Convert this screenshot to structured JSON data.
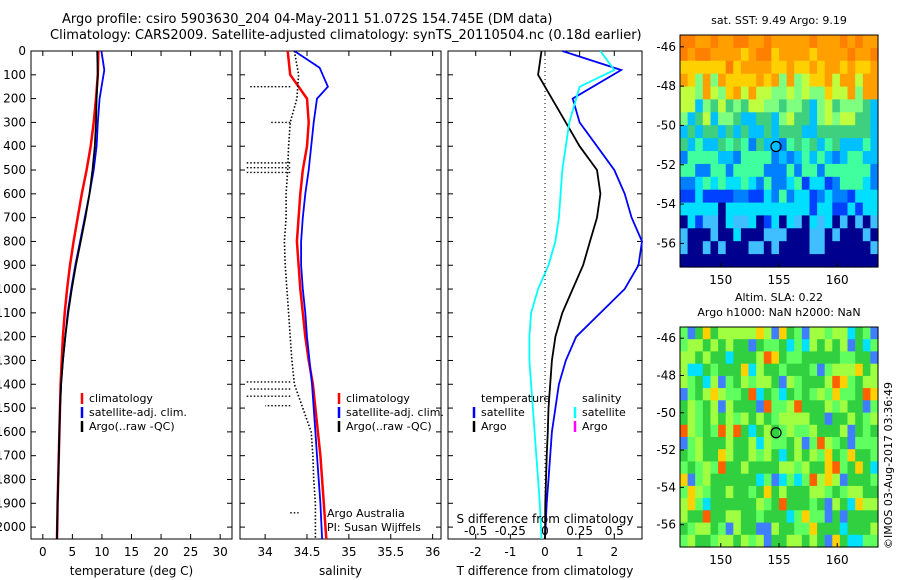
{
  "header": {
    "title_line1": "Argo profile: csiro 5903630_204 04-May-2011 51.072S 154.745E (DM data)",
    "title_line2": "Climatology: CARS2009. Satellite-adjusted climatology: synTS_20110504.nc (0.18d earlier)"
  },
  "colors": {
    "climatology": "#ff0000",
    "satellite": "#0000ff",
    "argo": "#000000",
    "satellite_salinity": "#00ffff",
    "argo_salinity": "#ff00ff"
  },
  "chart_data": [
    {
      "type": "line",
      "panel": "temperature",
      "xlabel": "temperature (deg C)",
      "ylabel": "",
      "xlim": [
        -2,
        32
      ],
      "ylim": [
        2050,
        0
      ],
      "xticks": [
        0,
        5,
        10,
        15,
        20,
        25,
        30
      ],
      "yticks": [
        0,
        100,
        200,
        300,
        400,
        500,
        600,
        700,
        800,
        900,
        1000,
        1100,
        1200,
        1300,
        1400,
        1500,
        1600,
        1700,
        1800,
        1900,
        2000
      ],
      "legend": [
        "climatology",
        "satellite-adj. clim.",
        "Argo(..raw -QC)"
      ],
      "series": [
        {
          "name": "climatology",
          "color": "#ff0000",
          "points": [
            [
              9.4,
              0
            ],
            [
              9.3,
              100
            ],
            [
              9.0,
              200
            ],
            [
              8.6,
              300
            ],
            [
              8.1,
              400
            ],
            [
              7.4,
              500
            ],
            [
              6.6,
              600
            ],
            [
              5.9,
              700
            ],
            [
              5.2,
              800
            ],
            [
              4.6,
              900
            ],
            [
              4.1,
              1000
            ],
            [
              3.7,
              1100
            ],
            [
              3.4,
              1200
            ],
            [
              3.2,
              1300
            ],
            [
              3.0,
              1400
            ],
            [
              2.9,
              1500
            ],
            [
              2.8,
              1600
            ],
            [
              2.7,
              1700
            ],
            [
              2.6,
              1800
            ],
            [
              2.5,
              1900
            ],
            [
              2.4,
              2050
            ]
          ]
        },
        {
          "name": "satellite-adj. clim.",
          "color": "#0000ff",
          "points": [
            [
              9.9,
              0
            ],
            [
              10.4,
              80
            ],
            [
              9.6,
              200
            ],
            [
              9.3,
              300
            ],
            [
              9.1,
              400
            ],
            [
              8.6,
              500
            ],
            [
              7.9,
              600
            ],
            [
              7.1,
              700
            ],
            [
              6.3,
              800
            ],
            [
              5.5,
              900
            ],
            [
              4.8,
              1000
            ],
            [
              4.2,
              1100
            ],
            [
              3.8,
              1200
            ],
            [
              3.4,
              1300
            ],
            [
              3.1,
              1400
            ],
            [
              2.9,
              1500
            ],
            [
              2.8,
              1600
            ],
            [
              2.7,
              1700
            ],
            [
              2.6,
              1800
            ],
            [
              2.5,
              1900
            ],
            [
              2.4,
              2050
            ]
          ]
        },
        {
          "name": "Argo(..raw -QC)",
          "color": "#000000",
          "points": [
            [
              9.2,
              0
            ],
            [
              9.3,
              100
            ],
            [
              9.1,
              200
            ],
            [
              9.0,
              300
            ],
            [
              8.8,
              400
            ],
            [
              8.4,
              500
            ],
            [
              7.9,
              600
            ],
            [
              7.2,
              700
            ],
            [
              6.4,
              800
            ],
            [
              5.6,
              900
            ],
            [
              4.9,
              1000
            ],
            [
              4.3,
              1100
            ],
            [
              3.8,
              1200
            ],
            [
              3.4,
              1300
            ],
            [
              3.1,
              1400
            ],
            [
              2.9,
              1500
            ],
            [
              2.8,
              1600
            ],
            [
              2.7,
              1700
            ],
            [
              2.6,
              1800
            ],
            [
              2.5,
              1900
            ],
            [
              2.4,
              2050
            ]
          ]
        }
      ]
    },
    {
      "type": "line",
      "panel": "salinity",
      "xlabel": "salinity",
      "ylabel": "",
      "xlim": [
        33.7,
        36.1
      ],
      "ylim": [
        2050,
        0
      ],
      "xticks": [
        34,
        34.5,
        35,
        35.5,
        36
      ],
      "legend": [
        "climatology",
        "satellite-adj. clim.",
        "Argo(..raw -QC)"
      ],
      "annotation": [
        "Argo Australia",
        "PI: Susan Wijffels"
      ],
      "series": [
        {
          "name": "climatology",
          "color": "#ff0000",
          "points": [
            [
              34.27,
              0
            ],
            [
              34.3,
              100
            ],
            [
              34.5,
              200
            ],
            [
              34.52,
              300
            ],
            [
              34.5,
              400
            ],
            [
              34.45,
              500
            ],
            [
              34.42,
              600
            ],
            [
              34.4,
              700
            ],
            [
              34.38,
              800
            ],
            [
              34.4,
              900
            ],
            [
              34.42,
              1000
            ],
            [
              34.45,
              1100
            ],
            [
              34.48,
              1200
            ],
            [
              34.52,
              1300
            ],
            [
              34.57,
              1400
            ],
            [
              34.6,
              1500
            ],
            [
              34.63,
              1600
            ],
            [
              34.66,
              1700
            ],
            [
              34.68,
              1800
            ],
            [
              34.7,
              1900
            ],
            [
              34.73,
              2050
            ]
          ]
        },
        {
          "name": "satellite-adj. clim.",
          "color": "#0000ff",
          "points": [
            [
              34.35,
              0
            ],
            [
              34.65,
              70
            ],
            [
              34.75,
              150
            ],
            [
              34.62,
              200
            ],
            [
              34.58,
              300
            ],
            [
              34.55,
              400
            ],
            [
              34.52,
              500
            ],
            [
              34.48,
              600
            ],
            [
              34.45,
              700
            ],
            [
              34.43,
              800
            ],
            [
              34.43,
              900
            ],
            [
              34.45,
              1000
            ],
            [
              34.48,
              1100
            ],
            [
              34.5,
              1200
            ],
            [
              34.53,
              1300
            ],
            [
              34.56,
              1400
            ],
            [
              34.58,
              1500
            ],
            [
              34.6,
              1600
            ],
            [
              34.62,
              1700
            ],
            [
              34.64,
              1800
            ],
            [
              34.66,
              1900
            ],
            [
              34.68,
              2050
            ]
          ]
        },
        {
          "name": "Argo(..raw -QC)",
          "color": "#000000",
          "dashed": true,
          "points": [
            [
              34.35,
              0
            ],
            [
              34.4,
              100
            ],
            [
              34.38,
              200
            ],
            [
              34.3,
              300
            ],
            [
              34.28,
              400
            ],
            [
              34.27,
              500
            ],
            [
              34.25,
              600
            ],
            [
              34.25,
              700
            ],
            [
              34.23,
              800
            ],
            [
              34.24,
              900
            ],
            [
              34.26,
              1000
            ],
            [
              34.28,
              1100
            ],
            [
              34.3,
              1200
            ],
            [
              34.32,
              1300
            ],
            [
              34.35,
              1400
            ],
            [
              34.45,
              1500
            ],
            [
              34.55,
              1600
            ],
            [
              34.57,
              1700
            ],
            [
              34.58,
              1800
            ],
            [
              34.6,
              1900
            ],
            [
              34.6,
              2050
            ]
          ]
        }
      ]
    },
    {
      "type": "line",
      "panel": "difference",
      "xlabel": "T difference from climatology",
      "xlabel_top": "S difference from climatology",
      "xlim": [
        -2.8,
        2.8
      ],
      "ylim": [
        2050,
        0
      ],
      "xticks": [
        -2,
        -1,
        0,
        1,
        2
      ],
      "xticks_s_labels": [
        "-0.5",
        "-0.25",
        "0",
        "0.25",
        "0.5"
      ],
      "legend": {
        "temperature": "temperature",
        "salinity": "salinity",
        "satellite": "satellite",
        "argo": "Argo"
      },
      "series": [
        {
          "name": "temperature satellite",
          "color": "#0000ff",
          "points": [
            [
              0.5,
              0
            ],
            [
              2.2,
              80
            ],
            [
              0.8,
              200
            ],
            [
              1.0,
              300
            ],
            [
              1.5,
              400
            ],
            [
              2.0,
              500
            ],
            [
              2.3,
              600
            ],
            [
              2.5,
              700
            ],
            [
              2.8,
              800
            ],
            [
              2.7,
              900
            ],
            [
              2.3,
              1000
            ],
            [
              1.6,
              1100
            ],
            [
              0.9,
              1200
            ],
            [
              0.6,
              1300
            ],
            [
              0.4,
              1400
            ],
            [
              0.3,
              1500
            ],
            [
              0.2,
              1600
            ],
            [
              0.15,
              1700
            ],
            [
              0.1,
              1800
            ],
            [
              0.05,
              1900
            ],
            [
              0.0,
              2050
            ]
          ]
        },
        {
          "name": "temperature Argo",
          "color": "#000000",
          "points": [
            [
              -0.1,
              0
            ],
            [
              -0.2,
              100
            ],
            [
              0.2,
              200
            ],
            [
              0.6,
              300
            ],
            [
              1.0,
              400
            ],
            [
              1.5,
              500
            ],
            [
              1.6,
              600
            ],
            [
              1.5,
              700
            ],
            [
              1.3,
              800
            ],
            [
              1.1,
              900
            ],
            [
              0.8,
              1000
            ],
            [
              0.5,
              1100
            ],
            [
              0.3,
              1200
            ],
            [
              0.2,
              1300
            ],
            [
              0.15,
              1400
            ],
            [
              0.1,
              1500
            ],
            [
              0.08,
              1600
            ],
            [
              0.05,
              1700
            ],
            [
              0.03,
              1800
            ],
            [
              0.01,
              1900
            ],
            [
              0.0,
              2050
            ]
          ]
        },
        {
          "name": "salinity satellite",
          "color": "#00ffff",
          "points": [
            [
              1.6,
              0
            ],
            [
              2.0,
              80
            ],
            [
              1.0,
              150
            ],
            [
              0.7,
              300
            ],
            [
              0.6,
              400
            ],
            [
              0.5,
              500
            ],
            [
              0.45,
              600
            ],
            [
              0.4,
              700
            ],
            [
              0.3,
              800
            ],
            [
              0.1,
              900
            ],
            [
              -0.2,
              1000
            ],
            [
              -0.4,
              1100
            ],
            [
              -0.45,
              1200
            ],
            [
              -0.45,
              1300
            ],
            [
              -0.4,
              1400
            ],
            [
              -0.35,
              1500
            ],
            [
              -0.3,
              1600
            ],
            [
              -0.25,
              1700
            ],
            [
              -0.2,
              1800
            ],
            [
              -0.15,
              1900
            ],
            [
              -0.1,
              2050
            ]
          ]
        }
      ]
    },
    {
      "type": "heatmap",
      "panel": "sst_map",
      "title": "sat. SST: 9.49 Argo: 9.19",
      "xlim": [
        146.5,
        163.5
      ],
      "ylim": [
        -57.2,
        -45.4
      ],
      "xticks": [
        150,
        155,
        160
      ],
      "yticks": [
        -46,
        -48,
        -50,
        -52,
        -54,
        -56
      ],
      "marker": {
        "lon": 154.745,
        "lat": -51.072
      }
    },
    {
      "type": "heatmap",
      "panel": "sla_map",
      "title": "Altim. SLA: 0.22",
      "subtitle": "Argo h1000: NaN h2000: NaN",
      "xlim": [
        146.5,
        163.5
      ],
      "ylim": [
        -57.2,
        -45.4
      ],
      "xticks": [
        150,
        155,
        160
      ],
      "yticks": [
        -46,
        -48,
        -50,
        -52,
        -54,
        -56
      ],
      "marker": {
        "lon": 154.745,
        "lat": -51.072
      }
    }
  ],
  "credit": "©IMOS 03-Aug-2017 03:36:49"
}
